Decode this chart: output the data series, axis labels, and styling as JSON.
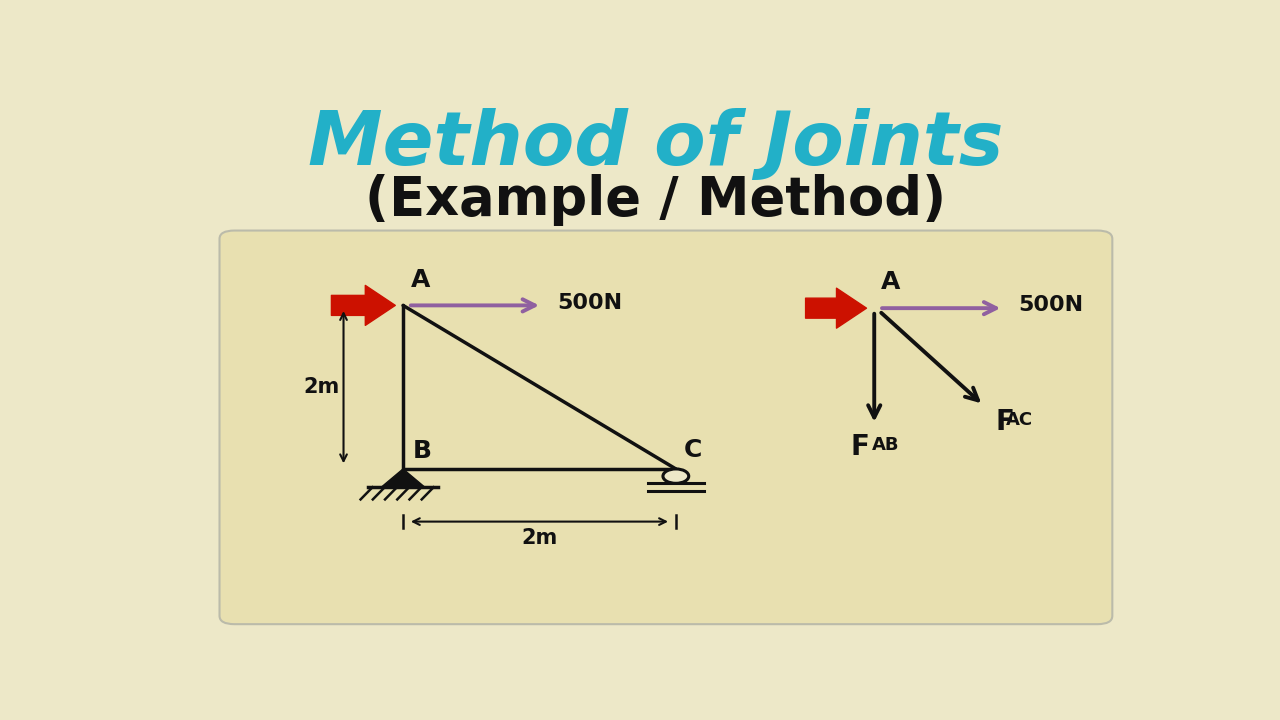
{
  "bg_color": "#ede8c8",
  "box_facecolor": "#e8e0b0",
  "box_edgecolor": "#bbbbaa",
  "title1": "Method of Joints",
  "title2": "(Example / Method)",
  "title1_color": "#22b0c8",
  "title2_color": "#111111",
  "arrow_color_500N": "#9060a0",
  "arrow_color_red": "#cc1100",
  "line_color": "#111111",
  "truss_A": [
    0.245,
    0.605
  ],
  "truss_B": [
    0.245,
    0.31
  ],
  "truss_C": [
    0.52,
    0.31
  ],
  "fbd_A": [
    0.72,
    0.6
  ]
}
